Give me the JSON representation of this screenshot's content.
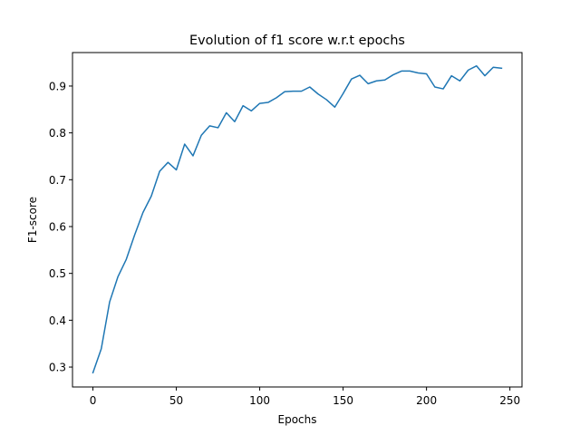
{
  "chart_data": {
    "type": "line",
    "title": "Evolution of f1 score w.r.t epochs",
    "xlabel": "Epochs",
    "ylabel": "F1-score",
    "xlim": [
      -12.25,
      257.25
    ],
    "ylim": [
      0.2575,
      0.9715
    ],
    "xticks": [
      0,
      50,
      100,
      150,
      200,
      250
    ],
    "yticks": [
      0.3,
      0.4,
      0.5,
      0.6,
      0.7,
      0.8,
      0.9
    ],
    "xtick_labels": [
      "0",
      "50",
      "100",
      "150",
      "200",
      "250"
    ],
    "ytick_labels": [
      "0.3",
      "0.4",
      "0.5",
      "0.6",
      "0.7",
      "0.8",
      "0.9"
    ],
    "grid": false,
    "legend": null,
    "color": "#1f77b4",
    "series": [
      {
        "x": [
          0,
          5,
          10,
          15,
          20,
          25,
          30,
          35,
          40,
          45,
          50,
          55,
          60,
          65,
          70,
          75,
          80,
          85,
          90,
          95,
          100,
          105,
          110,
          115,
          120,
          125,
          130,
          135,
          140,
          145,
          150,
          155,
          160,
          165,
          170,
          175,
          180,
          185,
          190,
          195,
          200,
          205,
          210,
          215,
          220,
          225,
          230,
          235,
          240,
          245
        ],
        "values": [
          0.288,
          0.339,
          0.439,
          0.493,
          0.53,
          0.582,
          0.63,
          0.665,
          0.718,
          0.737,
          0.721,
          0.776,
          0.751,
          0.795,
          0.815,
          0.811,
          0.843,
          0.824,
          0.858,
          0.847,
          0.863,
          0.865,
          0.875,
          0.888,
          0.889,
          0.889,
          0.898,
          0.883,
          0.871,
          0.855,
          0.884,
          0.915,
          0.923,
          0.905,
          0.911,
          0.913,
          0.924,
          0.932,
          0.932,
          0.928,
          0.926,
          0.898,
          0.894,
          0.922,
          0.911,
          0.934,
          0.943,
          0.922,
          0.94,
          0.938
        ]
      }
    ]
  }
}
